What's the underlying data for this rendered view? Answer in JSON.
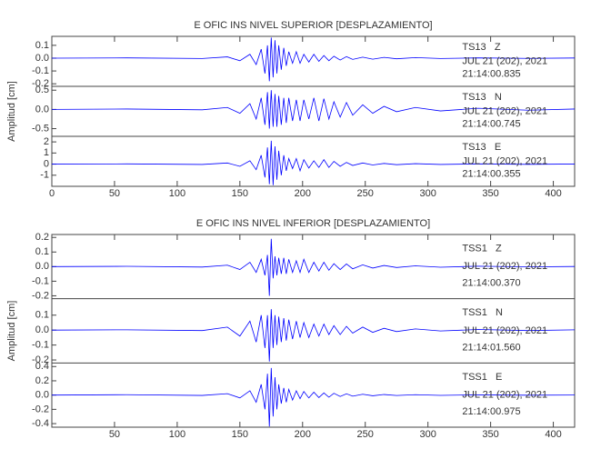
{
  "chart_data": [
    {
      "type": "seismogram",
      "title": "E OFIC INS NIVEL SUPERIOR [DESPLAZAMIENTO]",
      "ylabel": "Amplitud [cm]",
      "xlim": [
        0,
        417
      ],
      "xticks": [
        0,
        50,
        100,
        150,
        200,
        250,
        300,
        350,
        400
      ],
      "x": [
        0,
        60,
        120,
        140,
        150,
        158,
        163,
        167,
        170,
        172,
        173.5,
        175,
        176.5,
        178,
        179.5,
        181,
        183,
        185,
        187,
        189,
        192,
        195,
        198,
        201,
        205,
        209,
        213,
        217,
        221,
        225,
        230,
        235,
        240,
        248,
        256,
        265,
        275,
        290,
        310,
        340,
        380,
        417
      ],
      "series": [
        {
          "name": "TS13   Z",
          "date": "JUL 21 (202), 2021",
          "time": "21:14:00.835",
          "color": "#0000ff",
          "ylim": [
            -0.22,
            0.17
          ],
          "yticks": [
            0.1,
            {
              "value": 0,
              "label": "0.0"
            },
            -0.1,
            -0.2
          ],
          "values": [
            0,
            0.002,
            -0.003,
            0.01,
            -0.02,
            0.03,
            -0.05,
            0.07,
            -0.12,
            0.1,
            -0.18,
            0.16,
            -0.15,
            0.14,
            -0.12,
            0.1,
            -0.09,
            0.08,
            -0.06,
            0.05,
            -0.04,
            0.05,
            -0.04,
            0.03,
            -0.03,
            0.03,
            -0.025,
            0.02,
            -0.02,
            0.015,
            -0.015,
            0.012,
            -0.01,
            0.008,
            -0.008,
            0.006,
            -0.005,
            0.004,
            -0.003,
            0.002,
            -0.002,
            0.001
          ]
        },
        {
          "name": "TS13   N",
          "date": "JUL 21 (202), 2021",
          "time": "21:14:00.745",
          "color": "#0000ff",
          "ylim": [
            -0.7,
            0.6
          ],
          "yticks": [
            0.5,
            {
              "value": 0,
              "label": "0.0"
            },
            -0.5
          ],
          "values": [
            0,
            0.01,
            -0.01,
            0.05,
            -0.1,
            0.15,
            -0.25,
            0.3,
            -0.4,
            0.45,
            -0.5,
            0.5,
            -0.45,
            0.4,
            -0.45,
            0.35,
            -0.4,
            0.3,
            -0.35,
            0.3,
            -0.3,
            0.25,
            -0.3,
            0.25,
            -0.25,
            0.3,
            -0.3,
            0.28,
            -0.25,
            0.2,
            -0.2,
            0.18,
            -0.15,
            0.12,
            -0.1,
            0.08,
            -0.06,
            0.05,
            -0.04,
            0.03,
            -0.02,
            0.01
          ]
        },
        {
          "name": "TS13   E",
          "date": "JUL 21 (202), 2021",
          "time": "21:14:00.355",
          "color": "#0000ff",
          "ylim": [
            -2,
            2.5
          ],
          "yticks": [
            2,
            1,
            0,
            -1
          ],
          "values": [
            0,
            0.02,
            -0.03,
            0.1,
            -0.2,
            0.3,
            -0.5,
            0.8,
            -1.2,
            1.5,
            -1.8,
            2.1,
            -1.9,
            1.6,
            -1.4,
            1.2,
            -1,
            0.8,
            -0.6,
            0.5,
            -0.4,
            0.5,
            -0.6,
            0.4,
            -0.35,
            0.3,
            -0.3,
            0.4,
            -0.3,
            0.25,
            -0.2,
            0.15,
            -0.12,
            0.1,
            -0.08,
            0.06,
            -0.05,
            0.04,
            -0.03,
            0.02,
            -0.02,
            0.01
          ]
        }
      ]
    },
    {
      "type": "seismogram",
      "title": "E OFIC INS NIVEL INFERIOR [DESPLAZAMIENTO]",
      "ylabel": "Amplitud [cm]",
      "xlim": [
        0,
        417
      ],
      "xticks": [
        50,
        100,
        150,
        200,
        250,
        300,
        350,
        400
      ],
      "x": [
        0,
        60,
        120,
        140,
        150,
        158,
        163,
        167,
        170,
        172,
        173.5,
        175,
        176.5,
        178,
        179.5,
        181,
        183,
        185,
        187,
        189,
        192,
        195,
        198,
        201,
        205,
        209,
        213,
        217,
        221,
        225,
        230,
        235,
        240,
        248,
        256,
        265,
        275,
        290,
        310,
        340,
        380,
        417
      ],
      "series": [
        {
          "name": "TSS1   Z",
          "date": "JUL 21 (202), 2021",
          "time": "21:14:00.370",
          "color": "#0000ff",
          "ylim": [
            -0.22,
            0.22
          ],
          "yticks": [
            0.2,
            0.1,
            {
              "value": 0,
              "label": "0.0"
            },
            -0.1,
            -0.2
          ],
          "values": [
            0,
            0.002,
            -0.003,
            0.01,
            -0.02,
            0.03,
            -0.04,
            0.05,
            -0.06,
            0.08,
            -0.2,
            0.19,
            -0.08,
            0.07,
            -0.06,
            0.06,
            -0.05,
            0.06,
            -0.05,
            0.05,
            -0.04,
            0.04,
            -0.04,
            0.05,
            -0.04,
            0.03,
            -0.03,
            0.03,
            -0.025,
            0.02,
            -0.02,
            0.018,
            -0.015,
            0.012,
            -0.01,
            0.008,
            -0.006,
            0.005,
            -0.004,
            0.003,
            -0.002,
            0.001
          ]
        },
        {
          "name": "TSS1   N",
          "date": "JUL 21 (202), 2021",
          "time": "21:14:01.560",
          "color": "#0000ff",
          "ylim": [
            -0.22,
            0.21
          ],
          "yticks": [
            0.1,
            {
              "value": 0,
              "label": "0.0"
            },
            -0.1,
            -0.2
          ],
          "values": [
            0,
            0.002,
            -0.003,
            0.02,
            -0.04,
            0.06,
            -0.08,
            0.1,
            -0.12,
            0.1,
            -0.21,
            0.14,
            -0.12,
            0.1,
            -0.1,
            0.09,
            -0.08,
            0.08,
            -0.07,
            0.07,
            -0.06,
            0.06,
            -0.05,
            0.05,
            -0.05,
            0.04,
            -0.04,
            0.04,
            -0.03,
            0.03,
            -0.03,
            0.025,
            -0.02,
            0.02,
            -0.015,
            0.012,
            -0.01,
            0.008,
            -0.006,
            0.004,
            -0.003,
            0.002
          ]
        },
        {
          "name": "TSS1   E",
          "date": "JUL 21 (202), 2021",
          "time": "21:14:00.975",
          "color": "#0000ff",
          "ylim": [
            -0.45,
            0.45
          ],
          "yticks": [
            0.4,
            0.2,
            {
              "value": 0,
              "label": "0.0"
            },
            -0.2,
            -0.4
          ],
          "values": [
            0,
            0.005,
            -0.005,
            0.02,
            -0.04,
            0.06,
            -0.1,
            0.15,
            -0.2,
            0.3,
            -0.44,
            0.38,
            -0.3,
            0.25,
            -0.2,
            0.15,
            -0.12,
            0.1,
            -0.1,
            0.08,
            -0.07,
            0.06,
            -0.05,
            0.05,
            -0.04,
            0.04,
            -0.035,
            0.03,
            -0.03,
            0.025,
            -0.02,
            0.018,
            -0.015,
            0.012,
            -0.01,
            0.008,
            -0.006,
            0.005,
            -0.004,
            0.003,
            -0.002,
            0.001
          ]
        }
      ]
    }
  ]
}
